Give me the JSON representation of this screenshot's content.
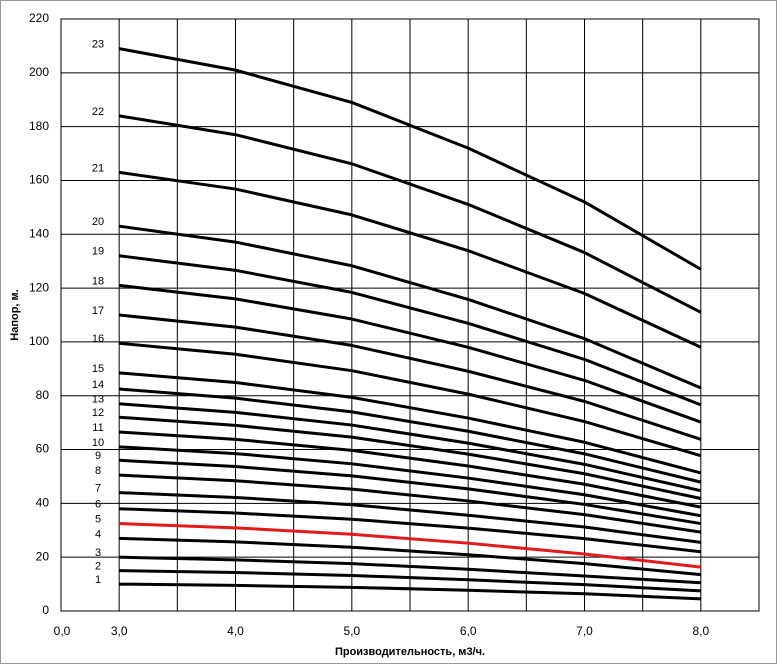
{
  "chart_data": {
    "type": "line",
    "x_axis_label": "Производительность,  м3/ч.",
    "y_axis_label": "Напор, м.",
    "x_origin_label": "0,0",
    "x": [
      3,
      4,
      5,
      6,
      7,
      8
    ],
    "xlim": [
      2.5,
      8.5
    ],
    "xticks": [
      {
        "value": 3,
        "label": "3,0"
      },
      {
        "value": 4,
        "label": "4,0"
      },
      {
        "value": 5,
        "label": "5,0"
      },
      {
        "value": 6,
        "label": "6,0"
      },
      {
        "value": 7,
        "label": "7,0"
      },
      {
        "value": 8,
        "label": "8,0"
      }
    ],
    "ylim": [
      0,
      220
    ],
    "yticks": [
      0,
      20,
      40,
      60,
      80,
      100,
      120,
      140,
      160,
      180,
      200,
      220
    ],
    "grid": true,
    "series": [
      {
        "name": "1",
        "color": "#000000",
        "values": [
          10,
          9.5,
          8.8,
          7.7,
          6.4,
          4.5
        ]
      },
      {
        "name": "2",
        "color": "#000000",
        "values": [
          15,
          14.3,
          13.2,
          11.6,
          9.8,
          7.5
        ]
      },
      {
        "name": "3",
        "color": "#000000",
        "values": [
          20,
          19,
          17.6,
          15.5,
          13,
          10.5
        ]
      },
      {
        "name": "4",
        "color": "#000000",
        "values": [
          27,
          25.7,
          23.7,
          20.9,
          17.6,
          13.5
        ]
      },
      {
        "name": "5",
        "color": "#e31a1c",
        "values": [
          32.5,
          30.9,
          28.5,
          25.2,
          21.2,
          16.3
        ]
      },
      {
        "name": "6",
        "color": "#000000",
        "values": [
          38,
          36.4,
          34.1,
          30.8,
          26.9,
          22
        ]
      },
      {
        "name": "7",
        "color": "#000000",
        "values": [
          44,
          42.2,
          39.5,
          35.6,
          31.2,
          25.5
        ]
      },
      {
        "name": "8",
        "color": "#000000",
        "values": [
          50.5,
          48.4,
          45.3,
          40.9,
          35.8,
          29.3
        ]
      },
      {
        "name": "9",
        "color": "#000000",
        "values": [
          56,
          53.7,
          50.2,
          45.4,
          39.6,
          32.5
        ]
      },
      {
        "name": "10",
        "color": "#000000",
        "values": [
          61,
          58.5,
          54.7,
          49.4,
          43.2,
          35.4
        ]
      },
      {
        "name": "11",
        "color": "#000000",
        "values": [
          66.5,
          63.8,
          59.7,
          53.9,
          47.1,
          38.6
        ]
      },
      {
        "name": "12",
        "color": "#000000",
        "values": [
          72,
          69,
          64.6,
          58.3,
          51,
          41.8
        ]
      },
      {
        "name": "13",
        "color": "#000000",
        "values": [
          77,
          73.8,
          69.1,
          62.4,
          54.5,
          44.7
        ]
      },
      {
        "name": "14",
        "color": "#000000",
        "values": [
          82.5,
          79.1,
          74,
          66.8,
          58.4,
          47.9
        ]
      },
      {
        "name": "15",
        "color": "#000000",
        "values": [
          88.5,
          84.9,
          79.4,
          71.7,
          62.7,
          51.3
        ]
      },
      {
        "name": "16",
        "color": "#000000",
        "values": [
          99.5,
          95.4,
          89.3,
          80.6,
          70.4,
          57.7
        ]
      },
      {
        "name": "17",
        "color": "#000000",
        "values": [
          110,
          105.5,
          98.7,
          89.1,
          77.9,
          63.8
        ]
      },
      {
        "name": "18",
        "color": "#000000",
        "values": [
          121,
          116,
          108.5,
          98,
          85.7,
          70.2
        ]
      },
      {
        "name": "19",
        "color": "#000000",
        "values": [
          132,
          126.6,
          118.4,
          106.9,
          93.5,
          76.6
        ]
      },
      {
        "name": "20",
        "color": "#000000",
        "values": [
          143,
          137.1,
          128.3,
          115.8,
          101.2,
          82.9
        ]
      },
      {
        "name": "21",
        "color": "#000000",
        "values": [
          163,
          156.8,
          147.2,
          133.9,
          118,
          98
        ]
      },
      {
        "name": "22",
        "color": "#000000",
        "values": [
          184,
          177,
          166.2,
          151.1,
          133.2,
          111
        ]
      },
      {
        "name": "23",
        "color": "#000000",
        "values": [
          209,
          201,
          189,
          172,
          152,
          127
        ]
      }
    ]
  }
}
